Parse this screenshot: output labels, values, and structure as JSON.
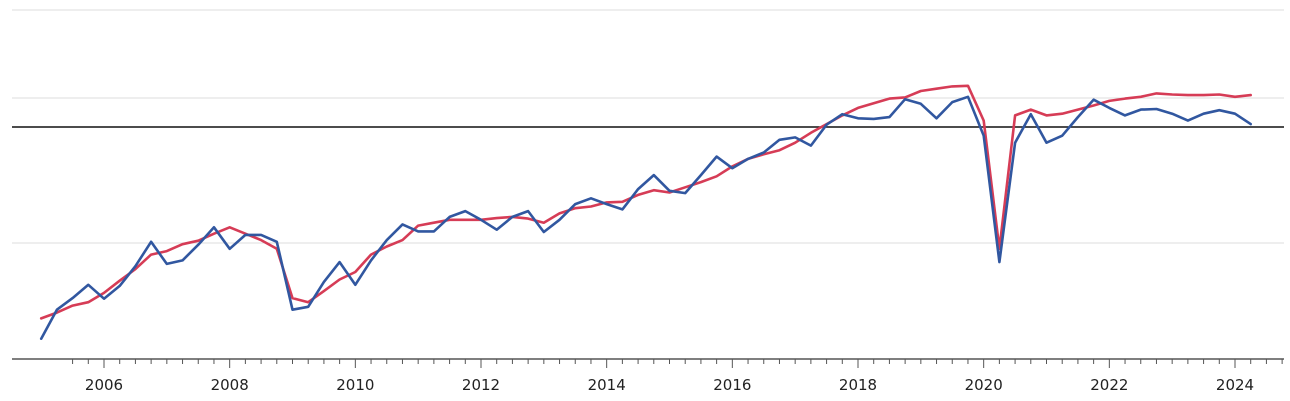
{
  "chart_data": {
    "type": "line",
    "title": "",
    "xlabel": "",
    "ylabel": "",
    "x_ticks": [
      "2006",
      "2008",
      "2010",
      "2012",
      "2014",
      "2016",
      "2018",
      "2020",
      "2022",
      "2024"
    ],
    "xlim": [
      2005.3,
      2025.6
    ],
    "ylim": [
      -4,
      1
    ],
    "reference_line": 0,
    "y_gridlines": [
      0.5,
      -2
    ],
    "grid": "horizontal",
    "series": [
      {
        "color": "#3157a0",
        "x": [
          2005.0,
          2005.25,
          2005.5,
          2005.75,
          2006.0,
          2006.25,
          2006.5,
          2006.75,
          2007.0,
          2007.25,
          2007.5,
          2007.75,
          2008.0,
          2008.25,
          2008.5,
          2008.75,
          2009.0,
          2009.25,
          2009.5,
          2009.75,
          2010.0,
          2010.25,
          2010.5,
          2010.75,
          2011.0,
          2011.25,
          2011.5,
          2011.75,
          2012.0,
          2012.25,
          2012.5,
          2012.75,
          2013.0,
          2013.25,
          2013.5,
          2013.75,
          2014.0,
          2014.25,
          2014.5,
          2014.75,
          2015.0,
          2015.25,
          2015.5,
          2015.75,
          2016.0,
          2016.25,
          2016.5,
          2016.75,
          2017.0,
          2017.25,
          2017.5,
          2017.75,
          2018.0,
          2018.25,
          2018.5,
          2018.75,
          2019.0,
          2019.25,
          2019.5,
          2019.75,
          2020.0,
          2020.25,
          2020.5,
          2020.75,
          2021.0,
          2021.25,
          2021.5,
          2021.75,
          2022.0,
          2022.25,
          2022.5,
          2022.75,
          2023.0,
          2023.25,
          2023.5,
          2023.75,
          2024.0,
          2024.25
        ],
        "y": [
          -3.65,
          -3.15,
          -2.95,
          -2.72,
          -2.96,
          -2.74,
          -2.4,
          -1.98,
          -2.36,
          -2.3,
          -2.03,
          -1.73,
          -2.1,
          -1.86,
          -1.86,
          -1.98,
          -3.15,
          -3.1,
          -2.67,
          -2.33,
          -2.72,
          -2.3,
          -1.95,
          -1.68,
          -1.8,
          -1.8,
          -1.55,
          -1.45,
          -1.6,
          -1.77,
          -1.55,
          -1.45,
          -1.81,
          -1.6,
          -1.33,
          -1.23,
          -1.33,
          -1.42,
          -1.07,
          -0.83,
          -1.1,
          -1.14,
          -0.83,
          -0.51,
          -0.71,
          -0.55,
          -0.44,
          -0.22,
          -0.18,
          -0.32,
          0.04,
          0.22,
          0.15,
          0.14,
          0.17,
          0.48,
          0.4,
          0.15,
          0.43,
          0.52,
          -0.15,
          -2.33,
          -0.27,
          0.22,
          -0.27,
          -0.15,
          0.17,
          0.47,
          0.33,
          0.2,
          0.3,
          0.31,
          0.23,
          0.11,
          0.23,
          0.29,
          0.23,
          0.05
        ]
      },
      {
        "color": "#d63c56",
        "x": [
          2005.0,
          2005.25,
          2005.5,
          2005.75,
          2006.0,
          2006.25,
          2006.5,
          2006.75,
          2007.0,
          2007.25,
          2007.5,
          2007.75,
          2008.0,
          2008.25,
          2008.5,
          2008.75,
          2009.0,
          2009.25,
          2009.5,
          2009.75,
          2010.0,
          2010.25,
          2010.5,
          2010.75,
          2011.0,
          2011.25,
          2011.5,
          2011.75,
          2012.0,
          2012.25,
          2012.5,
          2012.75,
          2013.0,
          2013.25,
          2013.5,
          2013.75,
          2014.0,
          2014.25,
          2014.5,
          2014.75,
          2015.0,
          2015.25,
          2015.5,
          2015.75,
          2016.0,
          2016.25,
          2016.5,
          2016.75,
          2017.0,
          2017.25,
          2017.5,
          2017.75,
          2018.0,
          2018.25,
          2018.5,
          2018.75,
          2019.0,
          2019.25,
          2019.5,
          2019.75,
          2020.0,
          2020.25,
          2020.5,
          2020.75,
          2021.0,
          2021.25,
          2021.5,
          2021.75,
          2022.0,
          2022.25,
          2022.5,
          2022.75,
          2023.0,
          2023.25,
          2023.5,
          2023.75,
          2024.0,
          2024.25
        ],
        "y": [
          -3.3,
          -3.2,
          -3.08,
          -3.02,
          -2.86,
          -2.65,
          -2.45,
          -2.2,
          -2.14,
          -2.02,
          -1.96,
          -1.84,
          -1.73,
          -1.84,
          -1.95,
          -2.1,
          -2.95,
          -3.02,
          -2.83,
          -2.63,
          -2.5,
          -2.2,
          -2.06,
          -1.95,
          -1.7,
          -1.65,
          -1.6,
          -1.6,
          -1.6,
          -1.57,
          -1.55,
          -1.58,
          -1.65,
          -1.49,
          -1.4,
          -1.37,
          -1.3,
          -1.29,
          -1.17,
          -1.09,
          -1.13,
          -1.04,
          -0.95,
          -0.85,
          -0.68,
          -0.55,
          -0.47,
          -0.4,
          -0.27,
          -0.1,
          0.05,
          0.2,
          0.33,
          0.41,
          0.49,
          0.51,
          0.62,
          0.66,
          0.7,
          0.71,
          0.11,
          -2.1,
          0.2,
          0.3,
          0.2,
          0.23,
          0.3,
          0.37,
          0.45,
          0.49,
          0.52,
          0.58,
          0.56,
          0.55,
          0.55,
          0.56,
          0.52,
          0.55
        ]
      }
    ]
  }
}
